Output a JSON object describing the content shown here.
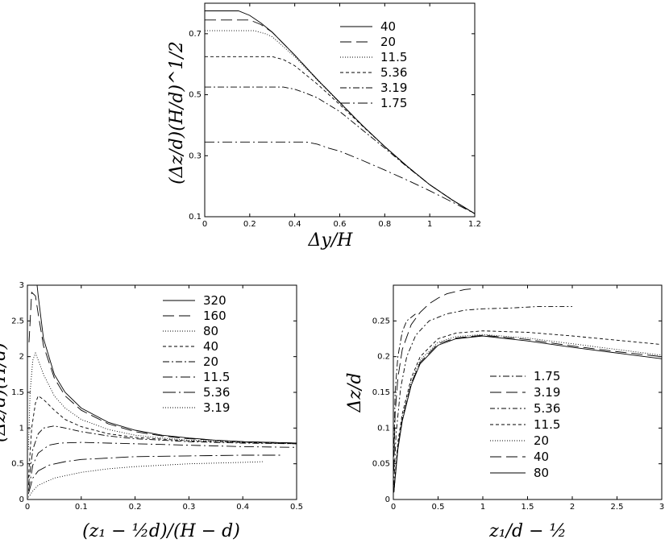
{
  "chart_data": [
    {
      "type": "line",
      "xlabel": "Δy/H",
      "ylabel": "(Δz/d)(H/d)^1/2",
      "xlim": [
        0,
        1.2
      ],
      "ylim": [
        0.1,
        0.8
      ],
      "xticks": [
        "0",
        "0.2",
        "0.4",
        "0.6",
        "0.8",
        "1",
        "1.2"
      ],
      "yticks": [
        "0.1",
        "0.3",
        "0.5",
        "0.7"
      ],
      "legend_position": "top-right",
      "series": [
        {
          "name": "40",
          "dash": "",
          "x": [
            0,
            0.15,
            0.2,
            0.25,
            0.3,
            0.4,
            0.5,
            0.6,
            0.7,
            0.8,
            0.9,
            1.0,
            1.1,
            1.2
          ],
          "values": [
            0.775,
            0.775,
            0.76,
            0.735,
            0.705,
            0.63,
            0.55,
            0.475,
            0.4,
            0.33,
            0.265,
            0.205,
            0.155,
            0.11
          ]
        },
        {
          "name": "20",
          "dash": "14 6",
          "x": [
            0,
            0.2,
            0.25,
            0.3,
            0.4,
            0.5,
            0.6,
            0.7,
            0.8,
            0.9,
            1.0,
            1.1,
            1.2
          ],
          "values": [
            0.745,
            0.745,
            0.73,
            0.705,
            0.63,
            0.55,
            0.475,
            0.4,
            0.33,
            0.265,
            0.205,
            0.155,
            0.11
          ]
        },
        {
          "name": "11.5",
          "dash": "1 2",
          "x": [
            0,
            0.22,
            0.27,
            0.3,
            0.4,
            0.5,
            0.6,
            0.7,
            0.8,
            0.9,
            1.0,
            1.1,
            1.2
          ],
          "values": [
            0.71,
            0.71,
            0.7,
            0.69,
            0.625,
            0.548,
            0.473,
            0.4,
            0.33,
            0.265,
            0.205,
            0.155,
            0.11
          ]
        },
        {
          "name": "5.36",
          "dash": "4 3",
          "x": [
            0,
            0.3,
            0.35,
            0.4,
            0.5,
            0.6,
            0.7,
            0.8,
            0.9,
            1.0,
            1.1,
            1.2
          ],
          "values": [
            0.625,
            0.625,
            0.615,
            0.595,
            0.535,
            0.468,
            0.398,
            0.33,
            0.265,
            0.205,
            0.155,
            0.11
          ]
        },
        {
          "name": "3.19",
          "dash": "8 3 2 3",
          "x": [
            0,
            0.35,
            0.4,
            0.45,
            0.5,
            0.6,
            0.7,
            0.8,
            0.9,
            1.0,
            1.1,
            1.2
          ],
          "values": [
            0.525,
            0.525,
            0.518,
            0.505,
            0.49,
            0.445,
            0.385,
            0.325,
            0.263,
            0.205,
            0.155,
            0.11
          ]
        },
        {
          "name": "1.75",
          "dash": "12 4 2 4",
          "x": [
            0,
            0.45,
            0.5,
            0.55,
            0.6,
            0.7,
            0.8,
            0.9,
            1.0,
            1.1,
            1.2
          ],
          "values": [
            0.345,
            0.345,
            0.338,
            0.325,
            0.315,
            0.285,
            0.253,
            0.22,
            0.185,
            0.148,
            0.11
          ]
        }
      ]
    },
    {
      "type": "line",
      "xlabel": "(z₁ − ½d)/(H − d)",
      "ylabel": "(Δz/d)(H/d)",
      "xlim": [
        0,
        0.5
      ],
      "ylim": [
        0,
        3
      ],
      "xticks": [
        "0",
        "0.1",
        "0.2",
        "0.3",
        "0.4",
        "0.5"
      ],
      "yticks": [
        "0",
        "0.5",
        "1",
        "1.5",
        "2",
        "2.5",
        "3"
      ],
      "legend_position": "top-right",
      "series": [
        {
          "name": "320",
          "dash": "",
          "x": [
            0.018,
            0.02,
            0.03,
            0.05,
            0.07,
            0.1,
            0.15,
            0.2,
            0.25,
            0.3,
            0.35,
            0.4,
            0.45,
            0.5
          ],
          "values": [
            3.0,
            2.85,
            2.25,
            1.75,
            1.5,
            1.28,
            1.08,
            0.97,
            0.9,
            0.86,
            0.83,
            0.81,
            0.8,
            0.79
          ]
        },
        {
          "name": "160",
          "dash": "14 6",
          "x": [
            0.003,
            0.008,
            0.015,
            0.02,
            0.03,
            0.05,
            0.07,
            0.1,
            0.15,
            0.2,
            0.25,
            0.3,
            0.4,
            0.5
          ],
          "values": [
            2.2,
            2.9,
            2.85,
            2.6,
            2.15,
            1.7,
            1.45,
            1.25,
            1.06,
            0.95,
            0.89,
            0.85,
            0.81,
            0.79
          ]
        },
        {
          "name": "80",
          "dash": "1 2",
          "x": [
            0.002,
            0.005,
            0.01,
            0.015,
            0.02,
            0.03,
            0.05,
            0.07,
            0.1,
            0.15,
            0.2,
            0.25,
            0.3,
            0.4,
            0.5
          ],
          "values": [
            0.7,
            1.5,
            1.95,
            2.05,
            1.95,
            1.75,
            1.45,
            1.28,
            1.12,
            0.98,
            0.9,
            0.86,
            0.83,
            0.8,
            0.78
          ]
        },
        {
          "name": "40",
          "dash": "4 3",
          "x": [
            0.002,
            0.008,
            0.015,
            0.02,
            0.03,
            0.05,
            0.07,
            0.1,
            0.15,
            0.2,
            0.3,
            0.4,
            0.5
          ],
          "values": [
            0.3,
            1.0,
            1.35,
            1.45,
            1.4,
            1.25,
            1.12,
            1.02,
            0.92,
            0.87,
            0.82,
            0.8,
            0.78
          ]
        },
        {
          "name": "20",
          "dash": "8 3 2 3",
          "x": [
            0.002,
            0.01,
            0.02,
            0.03,
            0.05,
            0.07,
            0.1,
            0.15,
            0.2,
            0.3,
            0.4,
            0.5
          ],
          "values": [
            0.2,
            0.7,
            0.92,
            1.0,
            1.03,
            1.0,
            0.95,
            0.89,
            0.85,
            0.81,
            0.79,
            0.78
          ]
        },
        {
          "name": "11.5",
          "dash": "12 4 2 4",
          "x": [
            0.002,
            0.01,
            0.02,
            0.04,
            0.06,
            0.1,
            0.15,
            0.2,
            0.3,
            0.4,
            0.5
          ],
          "values": [
            0.12,
            0.48,
            0.65,
            0.76,
            0.79,
            0.8,
            0.79,
            0.78,
            0.76,
            0.74,
            0.73
          ]
        },
        {
          "name": "5.36",
          "dash": "16 4 2 4",
          "x": [
            0.002,
            0.01,
            0.02,
            0.04,
            0.07,
            0.1,
            0.15,
            0.2,
            0.3,
            0.4,
            0.47
          ],
          "values": [
            0.08,
            0.3,
            0.4,
            0.48,
            0.53,
            0.56,
            0.58,
            0.6,
            0.61,
            0.62,
            0.62
          ]
        },
        {
          "name": "3.19",
          "dash": "1 2",
          "x": [
            0.002,
            0.01,
            0.02,
            0.05,
            0.1,
            0.15,
            0.2,
            0.3,
            0.4,
            0.44
          ],
          "values": [
            0.03,
            0.12,
            0.2,
            0.3,
            0.38,
            0.43,
            0.46,
            0.5,
            0.52,
            0.53
          ]
        }
      ]
    },
    {
      "type": "line",
      "xlabel": "z₁/d − ½",
      "ylabel": "Δz/d",
      "xlim": [
        0,
        3
      ],
      "ylim": [
        0,
        0.3
      ],
      "xticks": [
        "0",
        "0.5",
        "1",
        "1.5",
        "2",
        "2.5",
        "3"
      ],
      "yticks": [
        "0",
        "0.05",
        "0.1",
        "0.15",
        "0.2",
        "0.25"
      ],
      "legend_position": "center-right",
      "series": [
        {
          "name": "1.75",
          "dash": "8 3 2 3",
          "x": [
            0.005,
            0.02,
            0.05,
            0.1,
            0.15,
            0.2,
            0.25
          ],
          "values": [
            0.06,
            0.15,
            0.2,
            0.235,
            0.25,
            0.255,
            0.26
          ]
        },
        {
          "name": "3.19",
          "dash": "14 6",
          "x": [
            0.005,
            0.02,
            0.05,
            0.1,
            0.2,
            0.3,
            0.4,
            0.5,
            0.6,
            0.8,
            0.9
          ],
          "values": [
            0.04,
            0.12,
            0.17,
            0.21,
            0.245,
            0.262,
            0.274,
            0.282,
            0.288,
            0.294,
            0.295
          ]
        },
        {
          "name": "5.36",
          "dash": "6 3 2 3",
          "x": [
            0.005,
            0.03,
            0.08,
            0.15,
            0.25,
            0.4,
            0.6,
            0.8,
            1.0,
            1.3,
            1.6,
            2.0
          ],
          "values": [
            0.02,
            0.09,
            0.155,
            0.2,
            0.23,
            0.25,
            0.26,
            0.265,
            0.267,
            0.268,
            0.27,
            0.27
          ]
        },
        {
          "name": "11.5",
          "dash": "4 3",
          "x": [
            0.005,
            0.05,
            0.1,
            0.2,
            0.3,
            0.5,
            0.7,
            1.0,
            1.5,
            2.0,
            2.5,
            3.0
          ],
          "values": [
            0.01,
            0.08,
            0.12,
            0.17,
            0.2,
            0.225,
            0.233,
            0.236,
            0.234,
            0.229,
            0.223,
            0.217
          ]
        },
        {
          "name": "20",
          "dash": "1 2",
          "x": [
            0.005,
            0.05,
            0.1,
            0.2,
            0.3,
            0.5,
            0.7,
            1.0,
            1.5,
            2.0,
            2.5,
            3.0
          ],
          "values": [
            0.01,
            0.075,
            0.115,
            0.165,
            0.195,
            0.22,
            0.228,
            0.231,
            0.226,
            0.218,
            0.21,
            0.202
          ]
        },
        {
          "name": "40",
          "dash": "14 6",
          "x": [
            0.005,
            0.05,
            0.1,
            0.2,
            0.3,
            0.5,
            0.7,
            1.0,
            1.5,
            2.0,
            2.5,
            3.0
          ],
          "values": [
            0.01,
            0.072,
            0.112,
            0.162,
            0.192,
            0.218,
            0.226,
            0.23,
            0.224,
            0.215,
            0.207,
            0.2
          ]
        },
        {
          "name": "80",
          "dash": "",
          "x": [
            0.005,
            0.05,
            0.1,
            0.2,
            0.3,
            0.5,
            0.7,
            1.0,
            1.5,
            2.0,
            2.5,
            3.0
          ],
          "values": [
            0.01,
            0.07,
            0.11,
            0.16,
            0.19,
            0.216,
            0.225,
            0.229,
            0.222,
            0.213,
            0.205,
            0.197
          ]
        }
      ]
    }
  ]
}
